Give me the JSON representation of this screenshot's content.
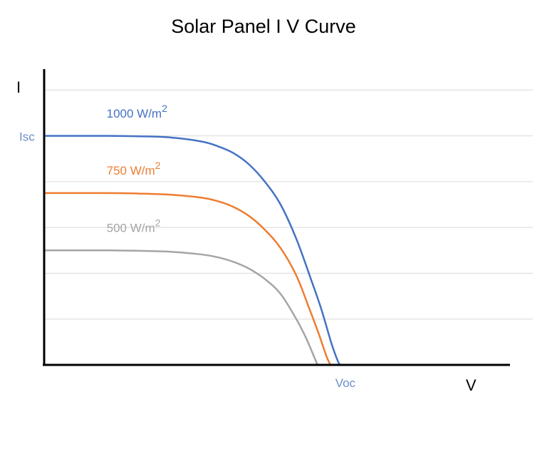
{
  "chart_data": {
    "type": "line",
    "title": "Solar Panel I V Curve",
    "xlabel": "V",
    "ylabel": "I",
    "xlim": [
      0,
      1.55
    ],
    "ylim": [
      0,
      1.4
    ],
    "grid": true,
    "ytick_values": [
      0.2,
      0.4,
      0.6,
      0.8,
      1.0,
      1.2
    ],
    "x_tick_labels": [
      {
        "value": 0.937,
        "text": "Voc",
        "color": "#6a8fc7"
      }
    ],
    "y_tick_labels": [
      {
        "value": 1.0,
        "text": "Isc",
        "color": "#6a8fc7"
      }
    ],
    "series": [
      {
        "name": "1000 W/m",
        "superscript": "2",
        "color": "#4472c4",
        "label_pos": [
          0.198,
          1.08
        ],
        "x": [
          0,
          0.1,
          0.2,
          0.3,
          0.4,
          0.5,
          0.55,
          0.6,
          0.65,
          0.7,
          0.75,
          0.8,
          0.85,
          0.88,
          0.91,
          0.925,
          0.937
        ],
        "y": [
          1.0,
          1.0,
          1.0,
          0.998,
          0.993,
          0.975,
          0.955,
          0.925,
          0.875,
          0.8,
          0.7,
          0.55,
          0.36,
          0.24,
          0.1,
          0.04,
          0
        ]
      },
      {
        "name": "750 W/m",
        "superscript": "2",
        "color": "#ed7d31",
        "label_pos": [
          0.198,
          0.83
        ],
        "x": [
          0,
          0.1,
          0.2,
          0.3,
          0.4,
          0.5,
          0.55,
          0.6,
          0.65,
          0.7,
          0.75,
          0.8,
          0.84,
          0.87,
          0.895,
          0.908
        ],
        "y": [
          0.75,
          0.75,
          0.75,
          0.748,
          0.743,
          0.73,
          0.715,
          0.69,
          0.65,
          0.59,
          0.51,
          0.39,
          0.25,
          0.14,
          0.04,
          0
        ]
      },
      {
        "name": "500 W/m",
        "superscript": "2",
        "color": "#a5a5a5",
        "label_pos": [
          0.198,
          0.58
        ],
        "x": [
          0,
          0.1,
          0.2,
          0.3,
          0.4,
          0.5,
          0.55,
          0.6,
          0.65,
          0.7,
          0.75,
          0.8,
          0.83,
          0.855,
          0.867
        ],
        "y": [
          0.5,
          0.5,
          0.5,
          0.498,
          0.494,
          0.482,
          0.47,
          0.45,
          0.42,
          0.375,
          0.31,
          0.2,
          0.12,
          0.04,
          0
        ]
      }
    ]
  }
}
